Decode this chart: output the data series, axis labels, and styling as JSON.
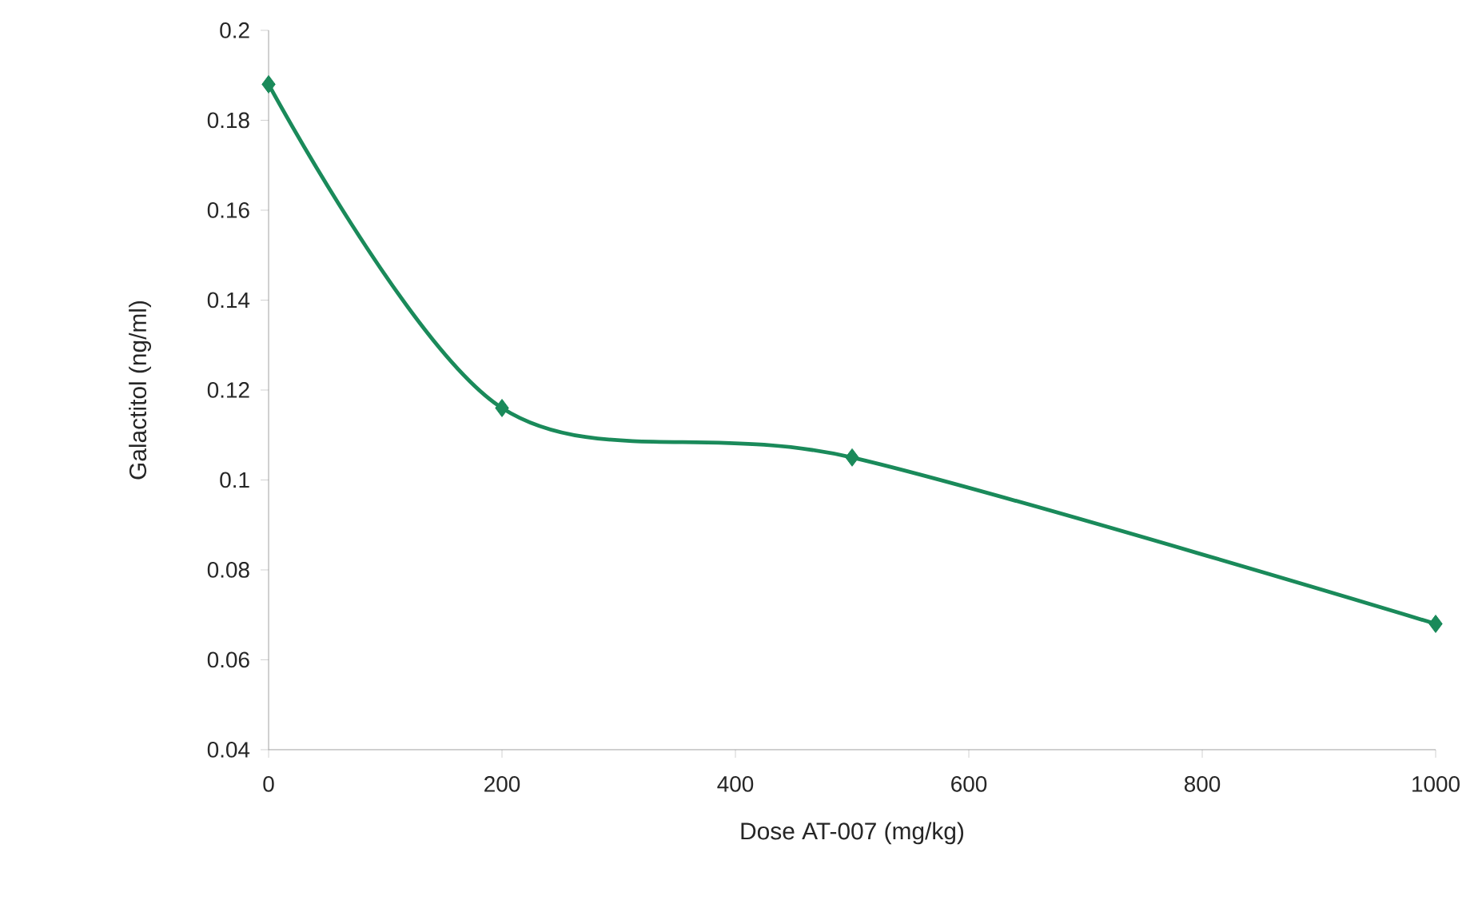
{
  "chart_data": {
    "type": "line",
    "xlabel": "Dose AT-007 (mg/kg)",
    "ylabel": "Galactitol (ng/ml)",
    "x": [
      0,
      200,
      500,
      1000
    ],
    "series": [
      {
        "color": "#1a8a5a",
        "values": [
          0.188,
          0.116,
          0.105,
          0.068
        ]
      }
    ],
    "xlim": [
      0,
      1000
    ],
    "xticks": [
      0,
      200,
      400,
      600,
      800,
      1000
    ],
    "ylim": [
      0.04,
      0.2
    ],
    "yticks": [
      {
        "value": 0.04,
        "label": "0.04"
      },
      {
        "value": 0.06,
        "label": "0.06"
      },
      {
        "value": 0.08,
        "label": "0.08"
      },
      {
        "value": 0.1,
        "label": "0.1"
      },
      {
        "value": 0.12,
        "label": "0.12"
      },
      {
        "value": 0.14,
        "label": "0.14"
      },
      {
        "value": 0.16,
        "label": "0.16"
      },
      {
        "value": 0.18,
        "label": "0.18"
      },
      {
        "value": 0.2,
        "label": "0.2"
      }
    ],
    "marker": "diamond",
    "line_style": "solid"
  }
}
